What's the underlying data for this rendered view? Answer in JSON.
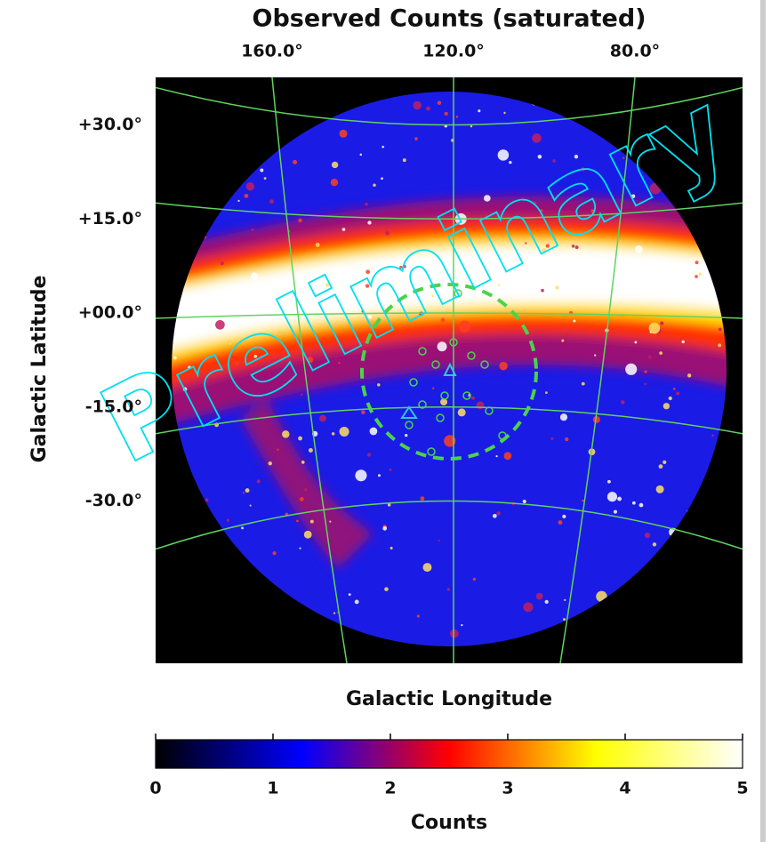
{
  "chart_data": {
    "type": "skymap",
    "title": "Observed Counts (saturated)",
    "xlabel": "Galactic Longitude",
    "ylabel": "Galactic Latitude",
    "watermark": "Preliminary",
    "xticks": [
      {
        "value": 160,
        "label": "160.0°"
      },
      {
        "value": 120,
        "label": "120.0°"
      },
      {
        "value": 80,
        "label": "80.0°"
      }
    ],
    "yticks": [
      {
        "value": 30,
        "label": "+30.0°"
      },
      {
        "value": 15,
        "label": "+15.0°"
      },
      {
        "value": 0,
        "label": "+00.0°"
      },
      {
        "value": -15,
        "label": "-15.0°"
      },
      {
        "value": -30,
        "label": "-30.0°"
      }
    ],
    "grid": true,
    "grid_color": "#5fd35f",
    "colorbar": {
      "label": "Counts",
      "clim": [
        0,
        5
      ],
      "ticks": [
        0,
        1,
        2,
        3,
        4,
        5
      ],
      "colormap": [
        "#000000",
        "#0000ff",
        "#ff0000",
        "#ffff00",
        "#ffffff"
      ]
    }
  }
}
